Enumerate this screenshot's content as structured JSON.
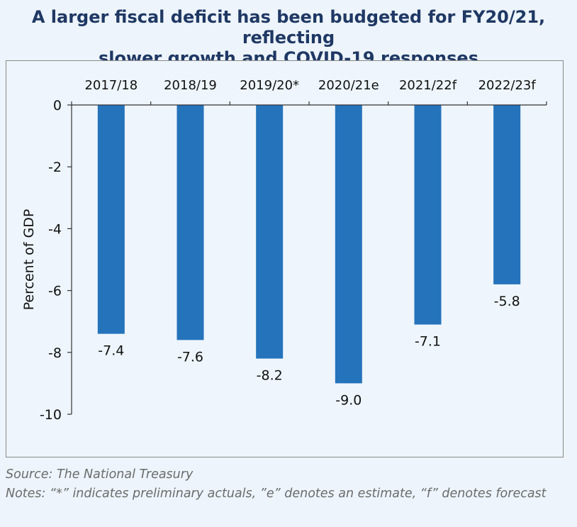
{
  "title_lines": [
    "A larger fiscal deficit has been budgeted for FY20/21, reflecting",
    "slower growth and COVID-19 responses"
  ],
  "source": "Source: The National Treasury",
  "notes": "Notes: “*” indicates preliminary actuals, ”e” denotes an estimate,  “f” denotes forecast",
  "colors": {
    "bar": "#2473bb",
    "title": "#1f3864"
  },
  "chart_data": {
    "type": "bar",
    "categories": [
      "2017/18",
      "2018/19",
      "2019/20*",
      "2020/21e",
      "2021/22f",
      "2022/23f"
    ],
    "values": [
      -7.4,
      -7.6,
      -8.2,
      -9.0,
      -7.1,
      -5.8
    ],
    "data_labels": [
      "-7.4",
      "-7.6",
      "-8.2",
      "-9.0",
      "-7.1",
      "-5.8"
    ],
    "ylabel": "Percent of GDP",
    "ylim": [
      -10,
      0
    ],
    "yticks": [
      0,
      -2,
      -4,
      -6,
      -8,
      -10
    ],
    "ytick_labels": [
      "0",
      "-2",
      "-4",
      "-6",
      "-8",
      "-10"
    ],
    "category_axis_position": "top",
    "grid": false,
    "legend": false
  }
}
